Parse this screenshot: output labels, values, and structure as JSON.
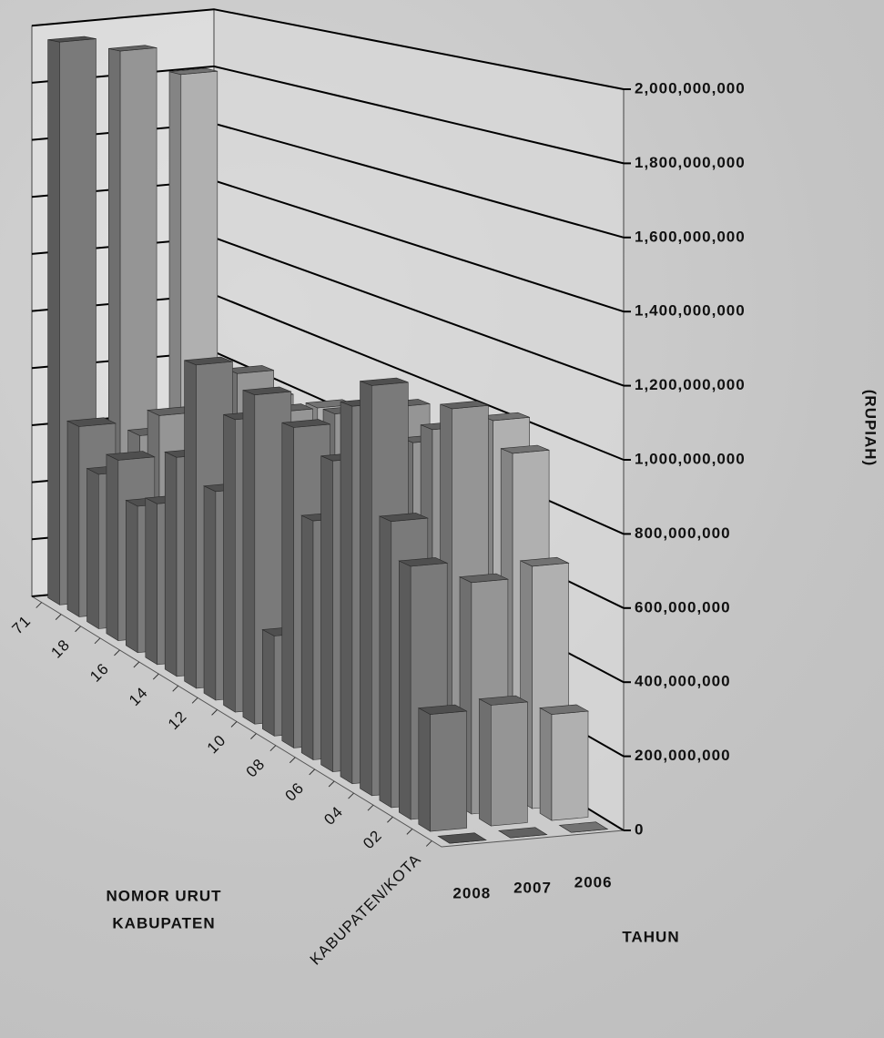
{
  "chart_data": {
    "type": "bar3d",
    "value_axis_label": "(RUPIAH)",
    "category_axis_label": [
      "NOMOR URUT",
      "KABUPATEN"
    ],
    "series_axis_label": "TAHUN",
    "categories": [
      "71",
      null,
      "18",
      null,
      "16",
      null,
      "14",
      null,
      "12",
      null,
      "10",
      null,
      "08",
      null,
      "06",
      null,
      "04",
      null,
      "02",
      null,
      "KABUPATEN/KOTA"
    ],
    "series": [
      {
        "name": "2008",
        "color": "#7a7a7a",
        "values": [
          1950000000,
          650000000,
          520000000,
          600000000,
          480000000,
          520000000,
          700000000,
          1020000000,
          650000000,
          900000000,
          1000000000,
          300000000,
          950000000,
          700000000,
          900000000,
          1080000000,
          1160000000,
          800000000,
          700000000,
          320000000,
          0
        ]
      },
      {
        "name": "2007",
        "color": "#959595",
        "values": [
          1900000000,
          600000000,
          700000000,
          560000000,
          650000000,
          800000000,
          950000000,
          900000000,
          880000000,
          780000000,
          640000000,
          950000000,
          760000000,
          850000000,
          1040000000,
          960000000,
          1020000000,
          1100000000,
          640000000,
          330000000,
          0
        ]
      },
      {
        "name": "2006",
        "color": "#b0b0b0",
        "values": [
          1800000000,
          560000000,
          640000000,
          700000000,
          600000000,
          750000000,
          620000000,
          850000000,
          700000000,
          620000000,
          900000000,
          880000000,
          700000000,
          920000000,
          800000000,
          880000000,
          1030000000,
          960000000,
          670000000,
          290000000,
          0
        ]
      }
    ],
    "ylim": [
      0,
      2000000000
    ],
    "yticks": [
      0,
      {
        "value": 200000000,
        "label": "200,000,000"
      },
      {
        "value": 400000000,
        "label": "400,000,000"
      },
      {
        "value": 600000000,
        "label": "600,000,000"
      },
      {
        "value": 800000000,
        "label": "800,000,000"
      },
      {
        "value": 1000000000,
        "label": "1,000,000,000"
      },
      {
        "value": 1200000000,
        "label": "1,200,000,000"
      },
      {
        "value": 1400000000,
        "label": "1,400,000,000"
      },
      {
        "value": 1600000000,
        "label": "1,600,000,000"
      },
      {
        "value": 1800000000,
        "label": "1,800,000,000"
      },
      {
        "value": 2000000000,
        "label": "2,000,000,000"
      }
    ],
    "grid": true
  }
}
